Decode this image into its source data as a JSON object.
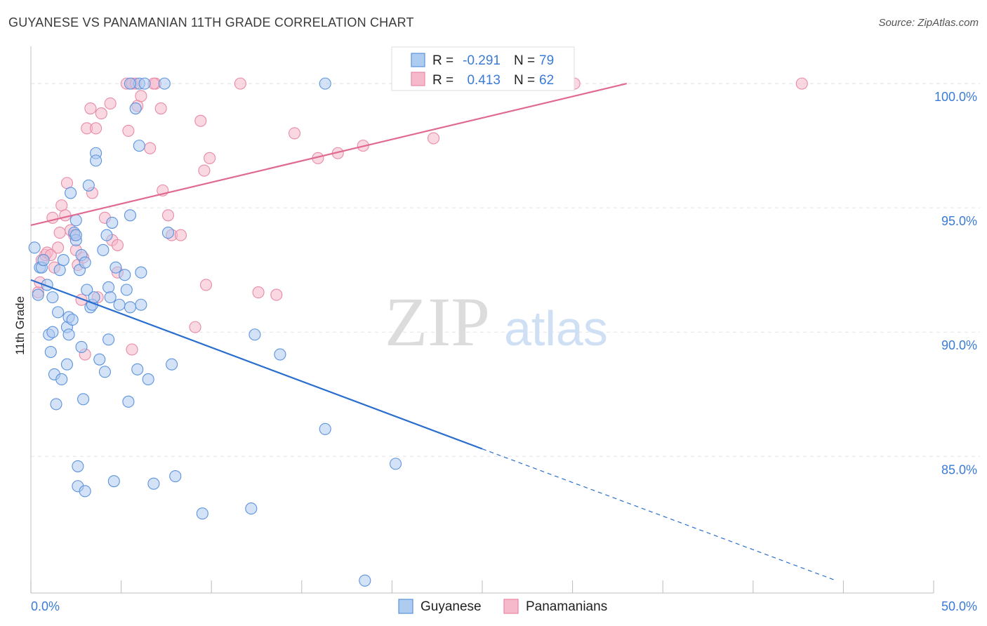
{
  "title": "GUYANESE VS PANAMANIAN 11TH GRADE CORRELATION CHART",
  "source": "Source: ZipAtlas.com",
  "watermark": {
    "zip": "ZIP",
    "atlas": "atlas"
  },
  "colors": {
    "blue_fill": "#aecbf0",
    "blue_stroke": "#5b93dc",
    "blue_line": "#2a6fcf",
    "pink_fill": "#f6b8cb",
    "pink_stroke": "#e88aa6",
    "pink_line": "#e06a90",
    "axis_label": "#3a7bd5",
    "grid": "#e4e4e4"
  },
  "legend_top": [
    {
      "series": "guyanese",
      "r_label": "R =",
      "r_value": "-0.291",
      "n_label": "N =",
      "n_value": "79"
    },
    {
      "series": "panamanians",
      "r_label": "R =",
      "r_value": "0.413",
      "n_label": "N =",
      "n_value": "62"
    }
  ],
  "legend_bottom": [
    "Guyanese",
    "Panamanians"
  ],
  "chart_data": {
    "type": "scatter",
    "ylabel": "11th Grade",
    "xlim": [
      0,
      50
    ],
    "ylim": [
      79.5,
      101.5
    ],
    "x_tick_labels": [
      "0.0%",
      "50.0%"
    ],
    "y_ticks": [
      85,
      90,
      95,
      100
    ],
    "y_tick_labels": [
      "85.0%",
      "90.0%",
      "95.0%",
      "100.0%"
    ],
    "grid": true,
    "legend_placement": "top-center",
    "series": [
      {
        "name": "Guyanese",
        "points": [
          [
            0.2,
            93.4
          ],
          [
            0.4,
            91.5
          ],
          [
            0.5,
            92.6
          ],
          [
            0.6,
            92.6
          ],
          [
            0.7,
            92.9
          ],
          [
            0.9,
            91.9
          ],
          [
            1.0,
            89.9
          ],
          [
            1.1,
            89.2
          ],
          [
            1.2,
            90.0
          ],
          [
            1.2,
            91.4
          ],
          [
            1.3,
            88.3
          ],
          [
            1.4,
            87.1
          ],
          [
            1.5,
            90.8
          ],
          [
            1.6,
            92.5
          ],
          [
            1.7,
            88.1
          ],
          [
            1.8,
            92.9
          ],
          [
            2.0,
            88.7
          ],
          [
            2.0,
            90.2
          ],
          [
            2.1,
            89.9
          ],
          [
            2.1,
            90.6
          ],
          [
            2.2,
            95.6
          ],
          [
            2.3,
            90.5
          ],
          [
            2.4,
            94.0
          ],
          [
            2.5,
            94.5
          ],
          [
            2.5,
            93.7
          ],
          [
            2.5,
            93.9
          ],
          [
            2.6,
            84.6
          ],
          [
            2.6,
            83.8
          ],
          [
            2.7,
            92.5
          ],
          [
            2.8,
            93.1
          ],
          [
            2.8,
            89.4
          ],
          [
            2.9,
            87.3
          ],
          [
            3.0,
            83.6
          ],
          [
            3.0,
            92.8
          ],
          [
            3.1,
            91.7
          ],
          [
            3.2,
            95.9
          ],
          [
            3.3,
            91.0
          ],
          [
            3.4,
            91.1
          ],
          [
            3.5,
            91.4
          ],
          [
            3.6,
            97.2
          ],
          [
            3.6,
            96.9
          ],
          [
            3.8,
            88.9
          ],
          [
            4.0,
            93.3
          ],
          [
            4.1,
            88.4
          ],
          [
            4.2,
            93.9
          ],
          [
            4.3,
            91.8
          ],
          [
            4.3,
            89.7
          ],
          [
            4.4,
            91.4
          ],
          [
            4.5,
            94.4
          ],
          [
            4.6,
            84.0
          ],
          [
            4.7,
            92.6
          ],
          [
            4.9,
            91.1
          ],
          [
            5.2,
            92.3
          ],
          [
            5.3,
            91.7
          ],
          [
            5.4,
            87.2
          ],
          [
            5.5,
            91.0
          ],
          [
            5.5,
            94.7
          ],
          [
            5.9,
            88.5
          ],
          [
            6.0,
            97.5
          ],
          [
            6.1,
            92.4
          ],
          [
            6.1,
            91.1
          ],
          [
            6.5,
            88.1
          ],
          [
            6.8,
            83.9
          ],
          [
            7.6,
            94.0
          ],
          [
            7.8,
            88.7
          ],
          [
            8.0,
            84.2
          ],
          [
            9.5,
            82.7
          ],
          [
            12.2,
            82.9
          ],
          [
            12.4,
            89.9
          ],
          [
            13.8,
            89.1
          ],
          [
            16.3,
            86.1
          ],
          [
            18.5,
            80.0
          ],
          [
            20.2,
            84.7
          ],
          [
            16.3,
            100.0
          ],
          [
            6.0,
            100.0
          ],
          [
            5.8,
            99.0
          ],
          [
            6.3,
            100.0
          ],
          [
            7.4,
            100.0
          ],
          [
            5.5,
            100.0
          ]
        ]
      },
      {
        "name": "Panamanians",
        "points": [
          [
            0.4,
            91.6
          ],
          [
            0.5,
            92.0
          ],
          [
            0.6,
            92.9
          ],
          [
            0.8,
            93.1
          ],
          [
            0.9,
            93.2
          ],
          [
            1.1,
            93.1
          ],
          [
            1.2,
            94.6
          ],
          [
            1.3,
            92.6
          ],
          [
            1.5,
            93.4
          ],
          [
            1.6,
            94.0
          ],
          [
            1.7,
            95.1
          ],
          [
            1.9,
            94.7
          ],
          [
            2.0,
            96.0
          ],
          [
            2.2,
            94.1
          ],
          [
            2.4,
            93.9
          ],
          [
            2.5,
            93.3
          ],
          [
            2.6,
            92.7
          ],
          [
            2.8,
            91.3
          ],
          [
            2.9,
            93.0
          ],
          [
            3.0,
            89.1
          ],
          [
            3.1,
            98.2
          ],
          [
            3.3,
            99.0
          ],
          [
            3.4,
            95.6
          ],
          [
            3.6,
            98.2
          ],
          [
            3.7,
            91.4
          ],
          [
            3.9,
            98.8
          ],
          [
            4.1,
            94.6
          ],
          [
            4.4,
            99.2
          ],
          [
            4.5,
            93.7
          ],
          [
            4.8,
            93.5
          ],
          [
            4.8,
            92.4
          ],
          [
            5.3,
            100.0
          ],
          [
            5.4,
            98.1
          ],
          [
            5.6,
            100.0
          ],
          [
            5.6,
            89.3
          ],
          [
            5.9,
            99.1
          ],
          [
            6.1,
            99.5
          ],
          [
            6.6,
            97.4
          ],
          [
            6.9,
            100.0
          ],
          [
            7.2,
            99.0
          ],
          [
            7.3,
            95.7
          ],
          [
            7.6,
            94.7
          ],
          [
            7.8,
            93.9
          ],
          [
            8.3,
            93.9
          ],
          [
            9.1,
            90.2
          ],
          [
            9.4,
            98.5
          ],
          [
            9.6,
            96.5
          ],
          [
            9.7,
            91.9
          ],
          [
            9.9,
            97.0
          ],
          [
            11.6,
            100.0
          ],
          [
            12.6,
            91.6
          ],
          [
            13.6,
            91.5
          ],
          [
            14.6,
            98.0
          ],
          [
            15.9,
            97.0
          ],
          [
            17.0,
            97.2
          ],
          [
            18.4,
            97.5
          ],
          [
            22.3,
            97.8
          ],
          [
            24.8,
            100.0
          ],
          [
            30.1,
            100.0
          ],
          [
            42.7,
            100.0
          ],
          [
            5.8,
            100.0
          ],
          [
            6.8,
            100.0
          ]
        ]
      }
    ],
    "trend_lines": [
      {
        "series": "Guyanese",
        "x0": 0,
        "y0": 92.1,
        "x1": 25,
        "y1": 85.3,
        "extends_dashed_to": [
          44.6,
          80.0
        ]
      },
      {
        "series": "Panamanians",
        "x0": 0,
        "y0": 94.3,
        "x1": 33,
        "y1": 100.0
      }
    ]
  }
}
